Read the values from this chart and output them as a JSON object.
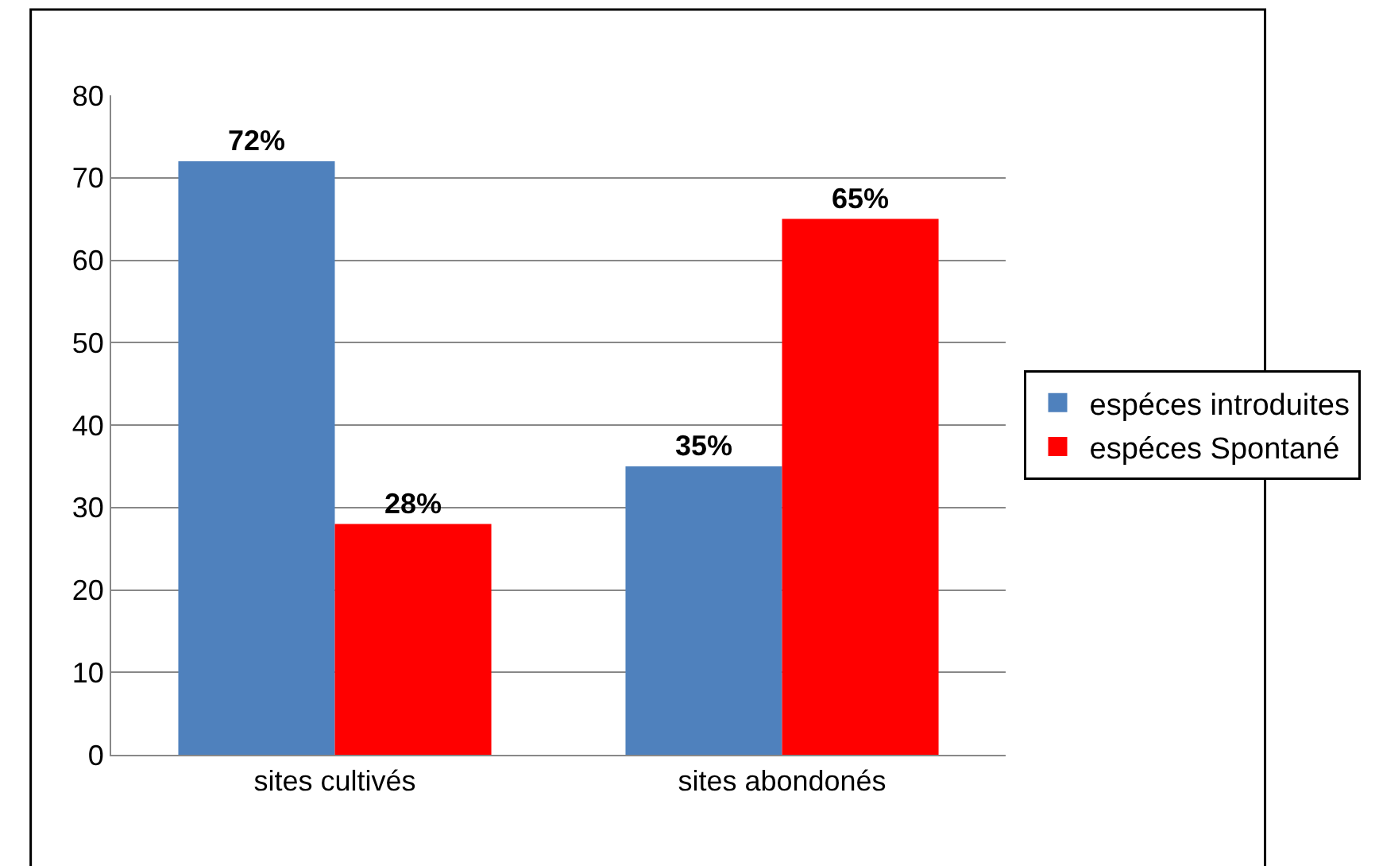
{
  "chart_data": {
    "type": "bar",
    "categories": [
      "sites cultivés",
      "sites abondonés"
    ],
    "series": [
      {
        "name": "espéces introduites",
        "color": "#4f81bd",
        "values": [
          72,
          35
        ],
        "value_labels": [
          "72%",
          "35%"
        ]
      },
      {
        "name": "espéces Spontané",
        "color": "#ff0000",
        "values": [
          28,
          65
        ],
        "value_labels": [
          "28%",
          "65%"
        ]
      }
    ],
    "ylim": [
      0,
      80
    ],
    "yticks": [
      0,
      10,
      20,
      30,
      40,
      50,
      60,
      70,
      80
    ],
    "grid": "y",
    "legend": "right"
  }
}
